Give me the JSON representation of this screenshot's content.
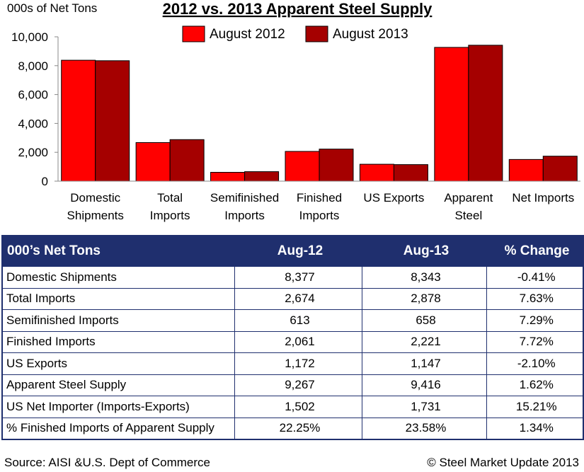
{
  "chart_data": {
    "type": "bar",
    "title": "2012 vs. 2013 Apparent Steel Supply",
    "ylabel": "000s of Net Tons",
    "xlabel": "",
    "ylim": [
      0,
      10000
    ],
    "yticks": [
      0,
      2000,
      4000,
      6000,
      8000,
      10000
    ],
    "ytick_labels": [
      "0",
      "2,000",
      "4,000",
      "6,000",
      "8,000",
      "10,000"
    ],
    "categories": [
      [
        "Domestic",
        "Shipments"
      ],
      [
        "Total",
        "Imports"
      ],
      [
        "Semifinished",
        "Imports"
      ],
      [
        "Finished",
        "Imports"
      ],
      [
        "US Exports"
      ],
      [
        "Apparent",
        "Steel"
      ],
      [
        "Net Imports"
      ]
    ],
    "series": [
      {
        "name": "August 2012",
        "color": "#ff0000",
        "values": [
          8377,
          2674,
          613,
          2061,
          1172,
          9267,
          1502
        ]
      },
      {
        "name": "August 2013",
        "color": "#a50000",
        "values": [
          8343,
          2878,
          658,
          2221,
          1147,
          9416,
          1731
        ]
      }
    ],
    "legend": "top-center"
  },
  "table": {
    "headers": [
      "000’s Net Tons",
      "Aug-12",
      "Aug-13",
      "% Change"
    ],
    "rows": [
      [
        "Domestic Shipments",
        "8,377",
        "8,343",
        "-0.41%"
      ],
      [
        "Total Imports",
        "2,674",
        "2,878",
        "7.63%"
      ],
      [
        "Semifinished Imports",
        "613",
        "658",
        "7.29%"
      ],
      [
        "Finished Imports",
        "2,061",
        "2,221",
        "7.72%"
      ],
      [
        "US Exports",
        "1,172",
        "1,147",
        "-2.10%"
      ],
      [
        "Apparent Steel Supply",
        "9,267",
        "9,416",
        "1.62%"
      ],
      [
        "US Net Importer (Imports-Exports)",
        "1,502",
        "1,731",
        "15.21%"
      ],
      [
        "% Finished Imports of Apparent Supply",
        "22.25%",
        "23.58%",
        "1.34%"
      ]
    ]
  },
  "footer": {
    "source": "Source:  AISI &U.S. Dept of Commerce",
    "copyright": "©    Steel Market Update 2013"
  }
}
